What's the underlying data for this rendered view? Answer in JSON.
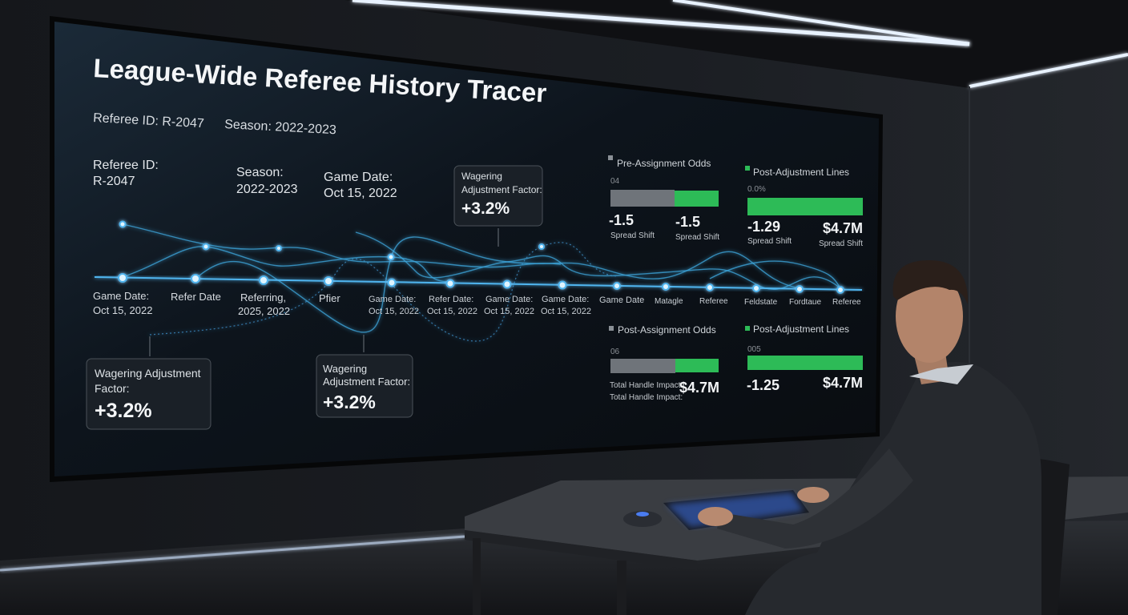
{
  "header": {
    "title": "League-Wide Referee History Tracer",
    "referee_id": "Referee ID: R-2047",
    "season": "Season: 2022-2023"
  },
  "timeline": {
    "top_labels": [
      {
        "lines": [
          "Referee ID:",
          "R-2047"
        ]
      },
      {
        "lines": [
          "Season:",
          "2022-2023"
        ]
      },
      {
        "lines": [
          "Game Date:",
          "Oct 15, 2022"
        ]
      }
    ],
    "node_labels": [
      {
        "lines": [
          "Game Date:",
          "Oct 15, 2022"
        ]
      },
      {
        "lines": [
          "Refer Date"
        ]
      },
      {
        "lines": [
          "Referring,",
          "2025, 2022"
        ]
      },
      {
        "lines": [
          "Pfier"
        ]
      },
      {
        "lines": [
          "Game Date:",
          "Oct 15, 2022"
        ]
      },
      {
        "lines": [
          "Refer Date:",
          "Oct 15, 2022"
        ]
      },
      {
        "lines": [
          "Game Date:",
          "Oct 15, 2022"
        ]
      },
      {
        "lines": [
          "Game Date:",
          "Oct 15, 2022"
        ]
      },
      {
        "lines": [
          "Game Date"
        ]
      },
      {
        "lines": [
          "Matagle"
        ]
      },
      {
        "lines": [
          "Referee"
        ]
      },
      {
        "lines": [
          "Feldstate"
        ]
      },
      {
        "lines": [
          "Fordtaue"
        ]
      },
      {
        "lines": [
          "Referee"
        ]
      }
    ]
  },
  "callouts": [
    {
      "lines": [
        "Wagering",
        "Adjustment Factor:"
      ],
      "value": "+3.2%"
    },
    {
      "lines": [
        "Wagering Adjustment",
        "Factor:"
      ],
      "value": "+3.2%"
    },
    {
      "lines": [
        "Wagering",
        "Adjustment Factor:"
      ],
      "value": "+3.2%"
    }
  ],
  "panels": [
    {
      "title": "Pre-Assignment Odds",
      "code": "04",
      "figures": [
        {
          "value": "-1.5",
          "caption": "Spread Shift"
        },
        {
          "value": "-1.5",
          "caption": "Spread Shift"
        }
      ]
    },
    {
      "title": "Post-Adjustment Lines",
      "code": "0.0%",
      "figures": [
        {
          "value": "-1.29",
          "caption": "Spread Shift"
        },
        {
          "value": "$4.7M",
          "caption": "Spread Shift"
        }
      ]
    },
    {
      "title": "Post-Assignment Odds",
      "code": "06",
      "figures": [
        {
          "caption": "Total Handle Impact:"
        },
        {
          "caption": "Total Handle Impact:"
        },
        {
          "value": "$4.7M"
        }
      ]
    },
    {
      "title": "Post-Adjustment Lines",
      "code": "005",
      "figures": [
        {
          "value": "-1.25"
        },
        {
          "value": "$4.7M"
        }
      ]
    }
  ]
}
